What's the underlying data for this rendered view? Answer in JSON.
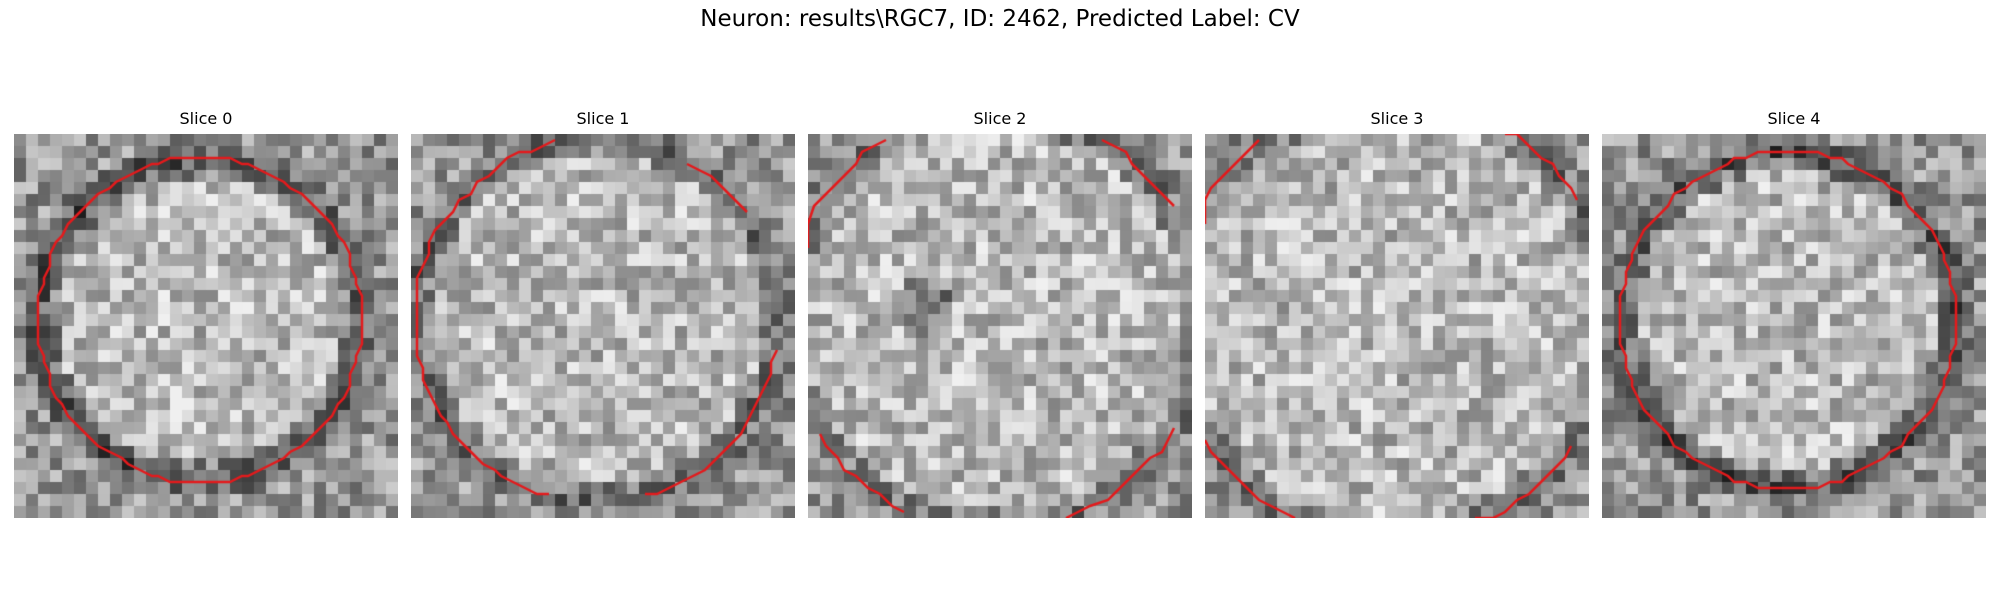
{
  "figure": {
    "title": "Neuron: results\\RGC7, ID: 2462, Predicted Label: CV"
  },
  "panels": [
    {
      "title": "Slice 0"
    },
    {
      "title": "Slice 1"
    },
    {
      "title": "Slice 2"
    },
    {
      "title": "Slice 3"
    },
    {
      "title": "Slice 4"
    }
  ],
  "colors": {
    "contour": "#e41a1c",
    "colormap": "gray"
  }
}
